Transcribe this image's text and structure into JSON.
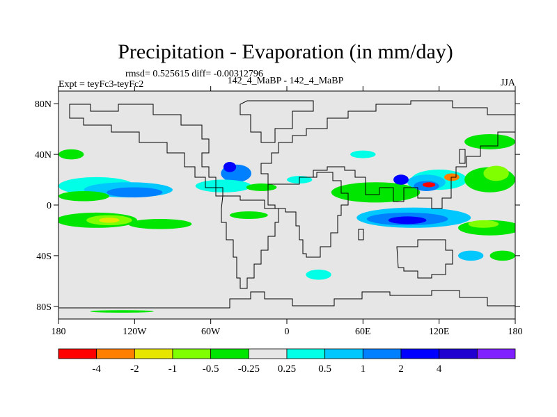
{
  "chart_data": {
    "type": "heatmap",
    "title": "Precipitation - Evaporation (in mm/day)",
    "stats": "rmsd= 0.525615 diff= -0.00312796",
    "left_label": "Expt = teyFc3-teyFc2",
    "center_label": "142_4_MaBP - 142_4_MaBP",
    "season": "JJA",
    "x_ticks": [
      {
        "value": -180,
        "label": "180"
      },
      {
        "value": -120,
        "label": "120W"
      },
      {
        "value": -60,
        "label": "60W"
      },
      {
        "value": 0,
        "label": "0"
      },
      {
        "value": 60,
        "label": "60E"
      },
      {
        "value": 120,
        "label": "120E"
      },
      {
        "value": 180,
        "label": "180"
      }
    ],
    "y_ticks": [
      {
        "value": 80,
        "label": "80N"
      },
      {
        "value": 40,
        "label": "40N"
      },
      {
        "value": 0,
        "label": "0"
      },
      {
        "value": -40,
        "label": "40S"
      },
      {
        "value": -80,
        "label": "80S"
      }
    ],
    "xlim": [
      -180,
      180
    ],
    "ylim": [
      -90,
      90
    ],
    "colorbar": {
      "colors": [
        "#ff0000",
        "#ff8000",
        "#e6e600",
        "#80ff00",
        "#00e600",
        "#e6e6e6",
        "#00ffe6",
        "#00c8ff",
        "#0080ff",
        "#0000ff",
        "#2000d0",
        "#8020ff"
      ],
      "labels": [
        "-4",
        "-2",
        "-1",
        "-0.5",
        "-0.25",
        "0.25",
        "0.5",
        "1",
        "2",
        "4"
      ]
    },
    "patches": [
      {
        "lon": -150,
        "lat": 15,
        "lon_r": 30,
        "lat_r": 7,
        "color": "#00ffe6"
      },
      {
        "lon": -125,
        "lat": 12,
        "lon_r": 35,
        "lat_r": 6,
        "color": "#00c8ff"
      },
      {
        "lon": -120,
        "lat": 10,
        "lon_r": 22,
        "lat_r": 4,
        "color": "#0080ff"
      },
      {
        "lon": -160,
        "lat": 7,
        "lon_r": 20,
        "lat_r": 4,
        "color": "#00e600"
      },
      {
        "lon": -150,
        "lat": -12,
        "lon_r": 32,
        "lat_r": 6,
        "color": "#00e600"
      },
      {
        "lon": -140,
        "lat": -12,
        "lon_r": 18,
        "lat_r": 4,
        "color": "#80ff00"
      },
      {
        "lon": -140,
        "lat": -12,
        "lon_r": 8,
        "lat_r": 2,
        "color": "#e6e600"
      },
      {
        "lon": -100,
        "lat": -15,
        "lon_r": 25,
        "lat_r": 4,
        "color": "#00e600"
      },
      {
        "lon": -170,
        "lat": 40,
        "lon_r": 10,
        "lat_r": 4,
        "color": "#00e600"
      },
      {
        "lon": -40,
        "lat": 25,
        "lon_r": 12,
        "lat_r": 7,
        "color": "#0080ff"
      },
      {
        "lon": -45,
        "lat": 30,
        "lon_r": 5,
        "lat_r": 4,
        "color": "#0000ff"
      },
      {
        "lon": -50,
        "lat": 15,
        "lon_r": 22,
        "lat_r": 5,
        "color": "#00ffe6"
      },
      {
        "lon": -20,
        "lat": 14,
        "lon_r": 12,
        "lat_r": 3,
        "color": "#00e600"
      },
      {
        "lon": -30,
        "lat": -8,
        "lon_r": 15,
        "lat_r": 3,
        "color": "#00e600"
      },
      {
        "lon": 70,
        "lat": 10,
        "lon_r": 35,
        "lat_r": 8,
        "color": "#00e600"
      },
      {
        "lon": 120,
        "lat": 20,
        "lon_r": 22,
        "lat_r": 8,
        "color": "#00ffe6"
      },
      {
        "lon": 110,
        "lat": 18,
        "lon_r": 15,
        "lat_r": 6,
        "color": "#00c8ff"
      },
      {
        "lon": 110,
        "lat": 15,
        "lon_r": 10,
        "lat_r": 4,
        "color": "#0080ff"
      },
      {
        "lon": 112,
        "lat": 16,
        "lon_r": 5,
        "lat_r": 2,
        "color": "#ff0000"
      },
      {
        "lon": 130,
        "lat": 22,
        "lon_r": 6,
        "lat_r": 3,
        "color": "#ff8000"
      },
      {
        "lon": 90,
        "lat": 20,
        "lon_r": 6,
        "lat_r": 4,
        "color": "#0000ff"
      },
      {
        "lon": 160,
        "lat": 20,
        "lon_r": 20,
        "lat_r": 10,
        "color": "#00e600"
      },
      {
        "lon": 165,
        "lat": 25,
        "lon_r": 10,
        "lat_r": 6,
        "color": "#80ff00"
      },
      {
        "lon": 160,
        "lat": 50,
        "lon_r": 20,
        "lat_r": 6,
        "color": "#00e600"
      },
      {
        "lon": 100,
        "lat": -10,
        "lon_r": 45,
        "lat_r": 8,
        "color": "#00c8ff"
      },
      {
        "lon": 95,
        "lat": -11,
        "lon_r": 32,
        "lat_r": 5,
        "color": "#0080ff"
      },
      {
        "lon": 95,
        "lat": -12,
        "lon_r": 15,
        "lat_r": 3,
        "color": "#0000ff"
      },
      {
        "lon": 160,
        "lat": -18,
        "lon_r": 25,
        "lat_r": 6,
        "color": "#00e600"
      },
      {
        "lon": 155,
        "lat": -15,
        "lon_r": 12,
        "lat_r": 3,
        "color": "#80ff00"
      },
      {
        "lon": 145,
        "lat": -40,
        "lon_r": 10,
        "lat_r": 4,
        "color": "#00c8ff"
      },
      {
        "lon": 170,
        "lat": -40,
        "lon_r": 10,
        "lat_r": 4,
        "color": "#00e600"
      },
      {
        "lon": 25,
        "lat": -55,
        "lon_r": 10,
        "lat_r": 4,
        "color": "#00ffe6"
      },
      {
        "lon": -130,
        "lat": -84,
        "lon_r": 25,
        "lat_r": 1,
        "color": "#00e600"
      },
      {
        "lon": 60,
        "lat": 40,
        "lon_r": 10,
        "lat_r": 3,
        "color": "#00ffe6"
      },
      {
        "lon": 10,
        "lat": 20,
        "lon_r": 10,
        "lat_r": 3,
        "color": "#00ffe6"
      }
    ]
  }
}
